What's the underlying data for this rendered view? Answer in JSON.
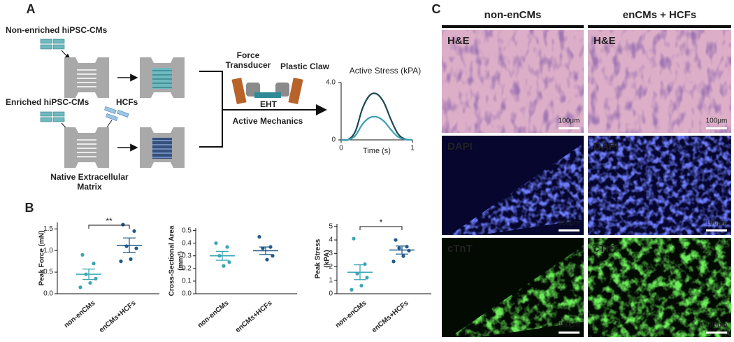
{
  "panel_labels": [
    "A",
    "B",
    "C"
  ],
  "panel_a": {
    "non_enriched": "Non-enriched hiPSC-CMs",
    "enriched": "Enriched hiPSC-CMs",
    "hcfs": "HCFs",
    "ecm": [
      "Native Extracellular",
      "Matrix"
    ],
    "force_transducer": [
      "Force",
      "Transducer"
    ],
    "plastic_claw": "Plastic Claw",
    "eht": "EHT",
    "active_mechanics": "Active Mechanics"
  },
  "chart_data": [
    {
      "type": "line",
      "title": "Active Stress (kPA)",
      "xlabel": "Time (s)",
      "x": [
        0,
        0.1,
        0.2,
        0.3,
        0.4,
        0.5,
        0.6,
        0.7,
        0.8,
        0.9,
        1
      ],
      "xlim": [
        0,
        1
      ],
      "xticks": [
        0,
        1
      ],
      "ylim": [
        0,
        4
      ],
      "yticks": [
        0,
        {
          "value": 4,
          "label": "4.0"
        }
      ],
      "series": [
        {
          "color": "#1b4852",
          "values": [
            0,
            0.02,
            0.6,
            2.2,
            3.1,
            3.2,
            2.6,
            1.4,
            0.4,
            0.05,
            0
          ]
        },
        {
          "color": "#3a9fb0",
          "values": [
            0,
            0.01,
            0.3,
            1.1,
            1.55,
            1.6,
            1.3,
            0.7,
            0.2,
            0.03,
            0
          ]
        }
      ]
    },
    {
      "type": "dot",
      "ylabel": [
        "Peak Force (mN)"
      ],
      "categories": [
        "non-enCMs",
        "enCMs+HCFs"
      ],
      "ylim": [
        0,
        1.65
      ],
      "yticks": [
        {
          "value": 0,
          "label": "0.0"
        },
        0.5,
        {
          "value": 1,
          "label": "1.0"
        },
        1.5
      ],
      "groups": [
        {
          "color": "#3aa6b4",
          "values": [
            0.9,
            0.7,
            0.45,
            0.35,
            0.25,
            0.15
          ],
          "mean": 0.45,
          "sem": 0.12
        },
        {
          "color": "#1f5a8a",
          "values": [
            1.6,
            1.45,
            1.1,
            1.05,
            0.8,
            0.75
          ],
          "mean": 1.12,
          "sem": 0.17
        }
      ],
      "significance": "**"
    },
    {
      "type": "dot",
      "ylabel": [
        "Cross-Sectional Area",
        "(mm²)"
      ],
      "categories": [
        "non-enCMs",
        "enCMs+HCFs"
      ],
      "ylim": [
        0,
        0.52
      ],
      "yticks": [
        {
          "value": 0,
          "label": "0.0"
        },
        0.1,
        0.2,
        0.3,
        0.4,
        0.5
      ],
      "groups": [
        {
          "color": "#3aa6b4",
          "values": [
            0.4,
            0.37,
            0.3,
            0.25,
            0.22
          ],
          "mean": 0.3,
          "sem": 0.035
        },
        {
          "color": "#1f5a8a",
          "values": [
            0.45,
            0.37,
            0.36,
            0.3,
            0.27
          ],
          "mean": 0.34,
          "sem": 0.03
        }
      ]
    },
    {
      "type": "dot",
      "ylabel": [
        "Peak Stress",
        "(kPA)"
      ],
      "categories": [
        "non-enCMs",
        "enCMs+HCFs"
      ],
      "ylim": [
        0,
        5.2
      ],
      "yticks": [
        0,
        1,
        2,
        3,
        4,
        5
      ],
      "groups": [
        {
          "color": "#3aa6b4",
          "values": [
            4.1,
            2.2,
            1.5,
            1.2,
            0.6,
            0.3
          ],
          "mean": 1.6,
          "sem": 0.55
        },
        {
          "color": "#1f5a8a",
          "values": [
            4.0,
            3.5,
            3.4,
            3.2,
            2.8,
            2.4
          ],
          "mean": 3.25,
          "sem": 0.3
        }
      ],
      "significance": "*"
    }
  ],
  "panel_c": {
    "columns": [
      "non-enCMs",
      "enCMs + HCFs"
    ],
    "rows": [
      "H&E",
      "DAPI",
      "cTnT"
    ],
    "scale_bar": "100μm"
  }
}
